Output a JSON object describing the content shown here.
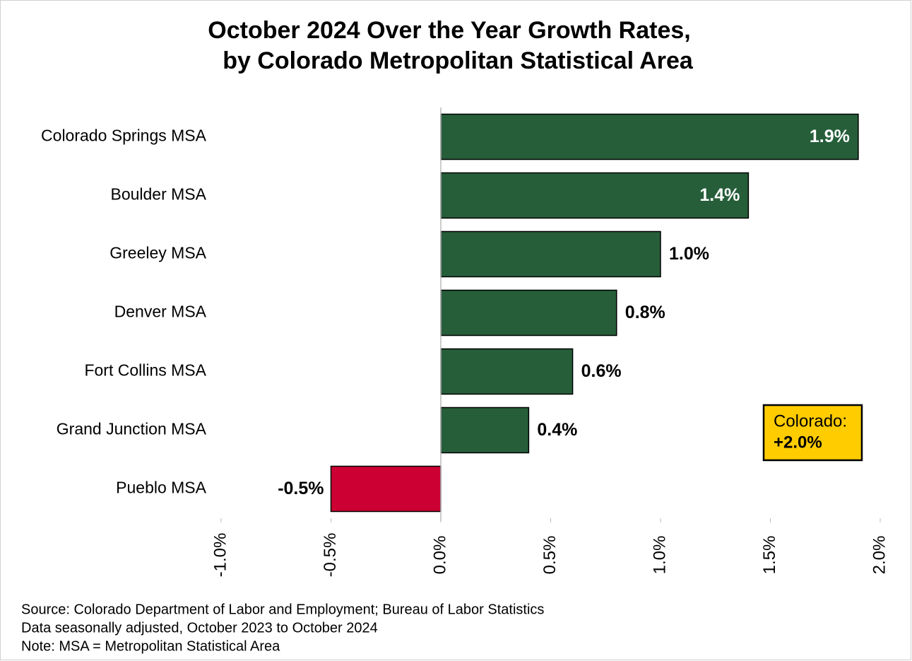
{
  "chart_data": {
    "type": "bar",
    "orientation": "horizontal",
    "title": [
      "October 2024 Over the Year Growth Rates,",
      "by Colorado Metropolitan Statistical Area"
    ],
    "categories": [
      "Colorado Springs MSA",
      "Boulder MSA",
      "Greeley MSA",
      "Denver MSA",
      "Fort Collins MSA",
      "Grand Junction MSA",
      "Pueblo MSA"
    ],
    "values": [
      1.9,
      1.4,
      1.0,
      0.8,
      0.6,
      0.4,
      -0.5
    ],
    "value_labels": [
      "1.9%",
      "1.4%",
      "1.0%",
      "0.8%",
      "0.6%",
      "0.4%",
      "-0.5%"
    ],
    "colors": [
      "#265e3a",
      "#265e3a",
      "#265e3a",
      "#265e3a",
      "#265e3a",
      "#265e3a",
      "#cc0033"
    ],
    "xlim": [
      -1.0,
      2.0
    ],
    "xticks": [
      {
        "value": -1.0,
        "label": "-1.0%"
      },
      {
        "value": -0.5,
        "label": "-0.5%"
      },
      {
        "value": 0,
        "label": "0.0%"
      },
      {
        "value": 0.5,
        "label": "0.5%"
      },
      {
        "value": 1.0,
        "label": "1.0%"
      },
      {
        "value": 1.5,
        "label": "1.5%"
      },
      {
        "value": 2.0,
        "label": "2.0%"
      }
    ],
    "annotations": [
      "Colorado:",
      "+2.0%"
    ],
    "notes": [
      "Source: Colorado Department of Labor and Employment; Bureau of Labor Statistics",
      "Data seasonally adjusted, October 2023 to October 2024",
      "Note: MSA = Metropolitan Statistical Area"
    ]
  }
}
